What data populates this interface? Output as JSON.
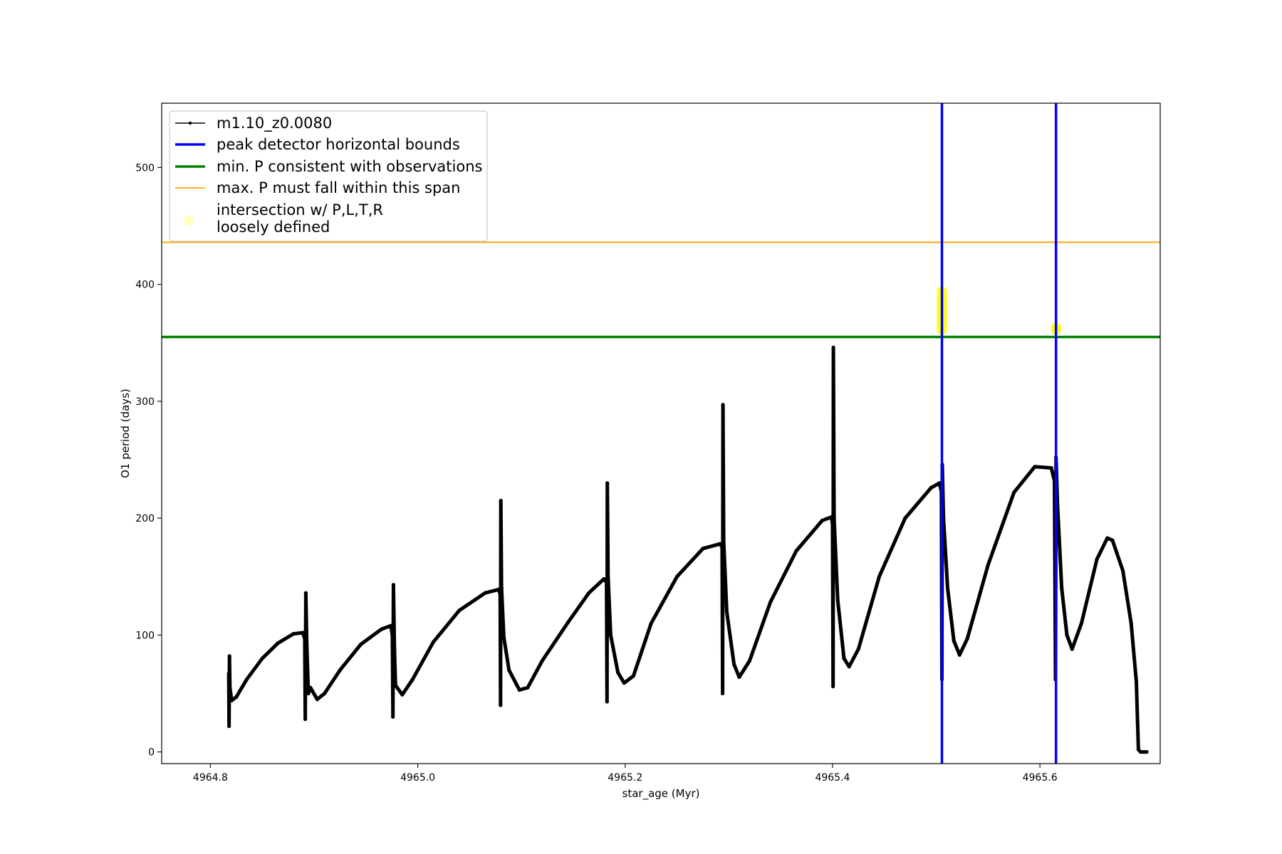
{
  "chart_data": {
    "type": "line",
    "xlabel": "star_age (Myr)",
    "ylabel": "O1 period (days)",
    "xlim": [
      4964.753,
      4965.716
    ],
    "ylim": [
      -10,
      555
    ],
    "xticks": [
      4964.8,
      4965.0,
      4965.2,
      4965.4,
      4965.6
    ],
    "xtick_labels": [
      "4964.8",
      "4965.0",
      "4965.2",
      "4965.4",
      "4965.6"
    ],
    "yticks": [
      0,
      100,
      200,
      300,
      400,
      500
    ],
    "ytick_labels": [
      "0",
      "100",
      "200",
      "300",
      "400",
      "500"
    ],
    "grid": false,
    "legend_placement": "upper left",
    "legend": [
      {
        "label": "m1.10_z0.0080",
        "kind": "line-marker",
        "color": "#000000"
      },
      {
        "label": "peak detector horizontal bounds",
        "kind": "line",
        "color": "#0000ff"
      },
      {
        "label": "min. P consistent with observations",
        "kind": "line",
        "color": "#008000"
      },
      {
        "label": "max. P must fall within this span",
        "kind": "line",
        "color": "#ffa500"
      },
      {
        "label_lines": [
          "intersection w/ P,L,T,R",
          "loosely defined"
        ],
        "kind": "dot",
        "color": "#ffff00"
      }
    ],
    "series": [
      {
        "name": "m1.10_z0.0080",
        "color": "#000000",
        "points": [
          [
            4964.8177,
            67
          ],
          [
            4964.818,
            22
          ],
          [
            4964.8184,
            82
          ],
          [
            4964.8188,
            55
          ],
          [
            4964.8205,
            44
          ],
          [
            4964.825,
            47
          ],
          [
            4964.835,
            62
          ],
          [
            4964.85,
            80
          ],
          [
            4964.865,
            93
          ],
          [
            4964.88,
            101
          ],
          [
            4964.889,
            102
          ],
          [
            4964.891,
            97
          ],
          [
            4964.8915,
            28
          ],
          [
            4964.892,
            136
          ],
          [
            4964.893,
            90
          ],
          [
            4964.8945,
            50
          ],
          [
            4964.8965,
            55
          ],
          [
            4964.903,
            45
          ],
          [
            4964.91,
            50
          ],
          [
            4964.925,
            70
          ],
          [
            4964.945,
            92
          ],
          [
            4964.965,
            105
          ],
          [
            4964.974,
            108
          ],
          [
            4964.9755,
            100
          ],
          [
            4964.976,
            30
          ],
          [
            4964.9765,
            143
          ],
          [
            4964.9775,
            88
          ],
          [
            4964.9785,
            57
          ],
          [
            4964.985,
            49
          ],
          [
            4964.995,
            62
          ],
          [
            4965.015,
            94
          ],
          [
            4965.04,
            121
          ],
          [
            4965.065,
            136
          ],
          [
            4965.078,
            139
          ],
          [
            4965.0795,
            135
          ],
          [
            4965.0798,
            40
          ],
          [
            4965.0801,
            215
          ],
          [
            4965.0808,
            140
          ],
          [
            4965.083,
            98
          ],
          [
            4965.088,
            70
          ],
          [
            4965.098,
            53
          ],
          [
            4965.106,
            55
          ],
          [
            4965.12,
            78
          ],
          [
            4965.145,
            111
          ],
          [
            4965.165,
            136
          ],
          [
            4965.1795,
            148
          ],
          [
            4965.182,
            145
          ],
          [
            4965.1825,
            43
          ],
          [
            4965.1828,
            230
          ],
          [
            4965.1835,
            150
          ],
          [
            4965.186,
            100
          ],
          [
            4965.193,
            68
          ],
          [
            4965.199,
            59
          ],
          [
            4965.208,
            65
          ],
          [
            4965.225,
            110
          ],
          [
            4965.25,
            150
          ],
          [
            4965.275,
            174
          ],
          [
            4965.2915,
            178
          ],
          [
            4965.2935,
            175
          ],
          [
            4965.294,
            50
          ],
          [
            4965.2943,
            297
          ],
          [
            4965.295,
            180
          ],
          [
            4965.298,
            120
          ],
          [
            4965.305,
            75
          ],
          [
            4965.31,
            64
          ],
          [
            4965.32,
            78
          ],
          [
            4965.34,
            128
          ],
          [
            4965.365,
            172
          ],
          [
            4965.39,
            198
          ],
          [
            4965.399,
            201
          ],
          [
            4965.4,
            195
          ],
          [
            4965.4005,
            56
          ],
          [
            4965.4008,
            346
          ],
          [
            4965.4015,
            200
          ],
          [
            4965.405,
            130
          ],
          [
            4965.411,
            80
          ],
          [
            4965.416,
            73
          ],
          [
            4965.425,
            88
          ],
          [
            4965.445,
            150
          ],
          [
            4965.47,
            200
          ],
          [
            4965.495,
            226
          ],
          [
            4965.503,
            230
          ],
          [
            4965.505,
            223
          ],
          [
            4965.5055,
            62
          ],
          [
            4965.5058,
            246
          ],
          [
            4965.507,
            200
          ],
          [
            4965.511,
            140
          ],
          [
            4965.517,
            95
          ],
          [
            4965.5225,
            83
          ],
          [
            4965.53,
            97
          ],
          [
            4965.55,
            160
          ],
          [
            4965.575,
            222
          ],
          [
            4965.595,
            244
          ],
          [
            4965.611,
            243
          ],
          [
            4965.614,
            232
          ],
          [
            4965.615,
            62
          ],
          [
            4965.6155,
            252
          ],
          [
            4965.617,
            210
          ],
          [
            4965.621,
            140
          ],
          [
            4965.626,
            100
          ],
          [
            4965.631,
            88
          ],
          [
            4965.64,
            110
          ],
          [
            4965.655,
            165
          ],
          [
            4965.665,
            183
          ],
          [
            4965.67,
            181
          ],
          [
            4965.68,
            155
          ],
          [
            4965.688,
            110
          ],
          [
            4965.693,
            60
          ],
          [
            4965.695,
            2
          ],
          [
            4965.697,
            0
          ],
          [
            4965.703,
            0
          ]
        ]
      }
    ],
    "vertical_lines": [
      {
        "x": 4965.5055,
        "color": "#0000ff"
      },
      {
        "x": 4965.6155,
        "color": "#0000ff"
      }
    ],
    "horizontal_lines": [
      {
        "y": 355,
        "color": "#008000"
      },
      {
        "y": 436,
        "color": "#ffa500"
      }
    ],
    "intersection_spans": [
      {
        "x": 4965.5055,
        "y_from": 357,
        "y_to": 398,
        "color": "#ffff00"
      },
      {
        "x": 4965.6155,
        "y_from": 357,
        "y_to": 367,
        "color": "#ffff00"
      }
    ]
  }
}
